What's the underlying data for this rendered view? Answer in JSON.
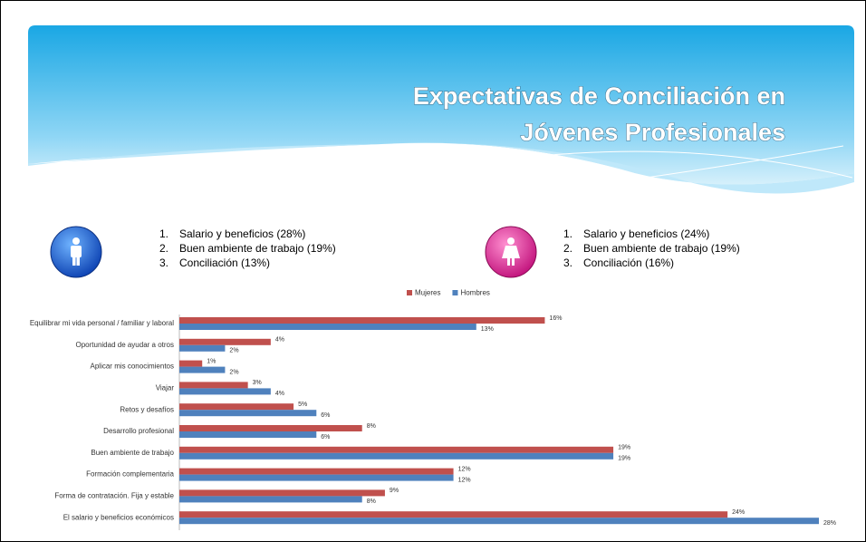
{
  "header": {
    "title_lines": [
      "Expectativas de Conciliación en",
      "Jóvenes Profesionales"
    ]
  },
  "lists": [
    {
      "items": [
        {
          "number": "1.",
          "text": "Salario y beneficios (28%)"
        },
        {
          "number": "2.",
          "text": "Buen ambiente de trabajo (19%)"
        },
        {
          "number": "3.",
          "text": "Conciliación (13%)"
        }
      ]
    },
    {
      "items": [
        {
          "number": "1.",
          "text": "Salario y beneficios (24%)"
        },
        {
          "number": "2.",
          "text": "Buen ambiente de trabajo (19%)"
        },
        {
          "number": "3.",
          "text": "Conciliación (16%)"
        }
      ]
    }
  ],
  "chart_data": {
    "type": "hbar",
    "categories": [
      "Equilibrar mi vida personal / familiar y laboral",
      "Oportunidad de ayudar a otros",
      "Aplicar mis conocimientos",
      "Viajar",
      "Retos y desafíos",
      "Desarrollo profesional",
      "Buen ambiente de trabajo",
      "Formación complementaria",
      "Forma de contratación. Fija y estable",
      "El salario y beneficios económicos"
    ],
    "series": [
      {
        "name": "Mujeres",
        "color": "#c0504d",
        "values": [
          16,
          4,
          1,
          3,
          5,
          8,
          19,
          12,
          9,
          24
        ],
        "value_labels": [
          "16%",
          "4%",
          "1%",
          "3%",
          "5%",
          "8%",
          "19%",
          "12%",
          "9%",
          "24%"
        ]
      },
      {
        "name": "Hombres",
        "color": "#4f81bd",
        "values": [
          13,
          2,
          2,
          4,
          6,
          6,
          19,
          12,
          8,
          28
        ],
        "value_labels": [
          "13%",
          "2%",
          "2%",
          "4%",
          "6%",
          "6%",
          "19%",
          "12%",
          "8%",
          "28%"
        ]
      }
    ],
    "legend": "top"
  }
}
